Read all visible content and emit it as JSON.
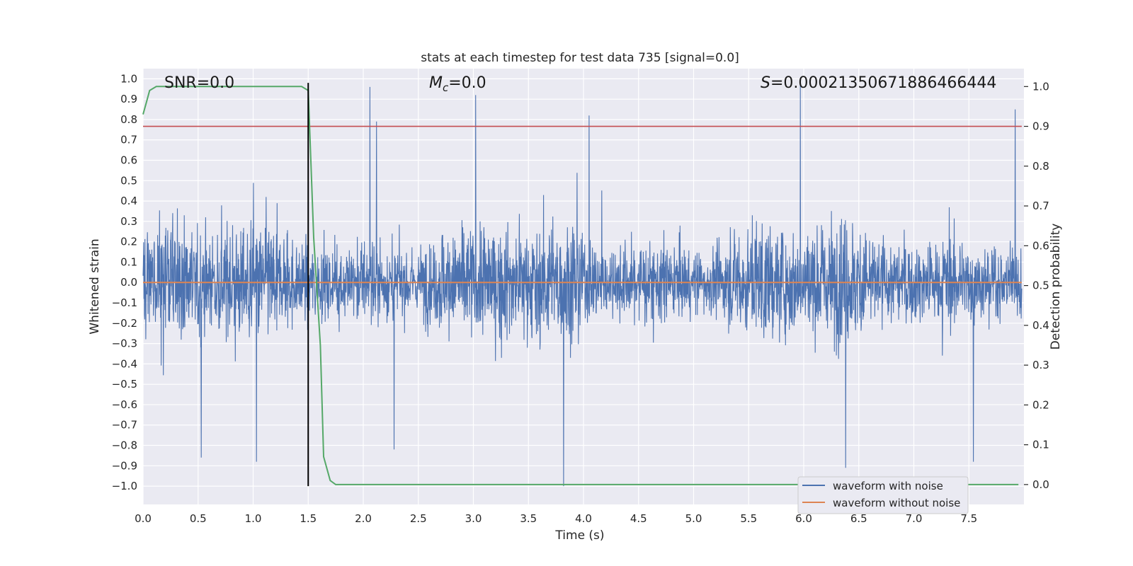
{
  "chart_data": {
    "type": "line",
    "title": "stats at each timestep for test data 735 [signal=0.0]",
    "xlabel": "Time (s)",
    "ylabel": "Whitened strain",
    "y2label": "Detection probability",
    "xlim": [
      0.0,
      8.0
    ],
    "ylim": [
      -1.09,
      1.05
    ],
    "y2lim": [
      -0.05,
      1.045
    ],
    "x_ticks": [
      0.0,
      0.5,
      1.0,
      1.5,
      2.0,
      2.5,
      3.0,
      3.5,
      4.0,
      4.5,
      5.0,
      5.5,
      6.0,
      6.5,
      7.0,
      7.5
    ],
    "x_tick_labels": [
      "0.0",
      "0.5",
      "1.0",
      "1.5",
      "2.0",
      "2.5",
      "3.0",
      "3.5",
      "4.0",
      "4.5",
      "5.0",
      "5.5",
      "6.0",
      "6.5",
      "7.0",
      "7.5"
    ],
    "y_ticks": [
      1.0,
      0.9,
      0.8,
      0.7,
      0.6,
      0.5,
      0.4,
      0.3,
      0.2,
      0.1,
      0.0,
      -0.1,
      -0.2,
      -0.3,
      -0.4,
      -0.5,
      -0.6,
      -0.7,
      -0.8,
      -0.9,
      -1.0
    ],
    "y_tick_labels": [
      "1.0",
      "0.9",
      "0.8",
      "0.7",
      "0.6",
      "0.5",
      "0.4",
      "0.3",
      "0.2",
      "0.1",
      "0.0",
      "−0.1",
      "−0.2",
      "−0.3",
      "−0.4",
      "−0.5",
      "−0.6",
      "−0.7",
      "−0.8",
      "−0.9",
      "−1.0"
    ],
    "y2_ticks": [
      1.0,
      0.9,
      0.8,
      0.7,
      0.6,
      0.5,
      0.4,
      0.3,
      0.2,
      0.1,
      0.0
    ],
    "y2_tick_labels": [
      "1.0",
      "0.9",
      "0.8",
      "0.7",
      "0.6",
      "0.5",
      "0.4",
      "0.3",
      "0.2",
      "0.1",
      "0.0"
    ],
    "annotations": {
      "snr": "SNR=0.0",
      "mc": "=0.0",
      "mc_symbol": "M",
      "mc_sub": "c",
      "s_symbol": "S",
      "s_value": "=0.00021350671886466444"
    },
    "series": [
      {
        "name": "waveform with noise",
        "color": "#4c72b0",
        "description": "dense noise trace, typical envelope ±0.5, sampled at high rate",
        "notable_peaks": [
          {
            "x": 2.06,
            "y": 0.96
          },
          {
            "x": 3.02,
            "y": 0.92
          },
          {
            "x": 5.97,
            "y": 0.97
          },
          {
            "x": 7.92,
            "y": 0.85
          },
          {
            "x": 4.05,
            "y": 0.82
          },
          {
            "x": 2.12,
            "y": 0.79
          },
          {
            "x": 3.82,
            "y": -1.0
          },
          {
            "x": 6.38,
            "y": -0.91
          },
          {
            "x": 0.53,
            "y": -0.86
          },
          {
            "x": 1.03,
            "y": -0.88
          },
          {
            "x": 7.54,
            "y": -0.88
          },
          {
            "x": 2.28,
            "y": -0.82
          }
        ]
      },
      {
        "name": "waveform without noise",
        "color": "#dd8452",
        "description": "flat at 0.0"
      }
    ],
    "detection_probability": {
      "color": "#55a868",
      "axis": "right",
      "x": [
        0.0,
        0.03,
        0.06,
        0.12,
        1.44,
        1.5,
        1.55,
        1.61,
        1.64,
        1.7,
        1.75,
        7.95
      ],
      "y": [
        0.93,
        0.96,
        0.99,
        1.0,
        1.0,
        0.99,
        0.62,
        0.35,
        0.07,
        0.01,
        0.0,
        0.0
      ]
    },
    "threshold_line": {
      "color": "#c44e52",
      "axis": "right",
      "y": 0.9
    },
    "event_marker": {
      "color": "#000000",
      "x": 1.5,
      "y_from": -1.0,
      "y_to": 0.98
    },
    "legend": {
      "position": "lower-right",
      "entries": [
        {
          "label": "waveform with noise",
          "color": "#4c72b0"
        },
        {
          "label": "waveform without noise",
          "color": "#dd8452"
        }
      ]
    },
    "grid": true,
    "style": {
      "background": "#eaeaf2",
      "grid_color": "#ffffff"
    }
  }
}
